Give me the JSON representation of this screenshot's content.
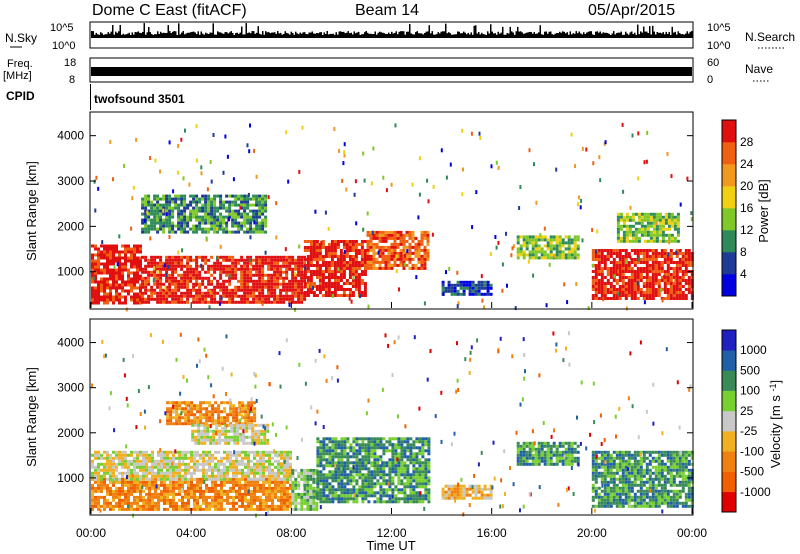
{
  "header": {
    "radar": "Dome C East (fitACF)",
    "beam": "Beam 14",
    "date": "05/Apr/2015"
  },
  "strips": {
    "nsky_label": "N.Sky",
    "nsearch_label": "N.Search",
    "noise_ticks": [
      "10^5",
      "10^0"
    ],
    "freq_label": "Freq.",
    "freq_unit": "[MHz]",
    "freq_ticks": [
      "18",
      "8"
    ],
    "nave_label": "Nave",
    "nave_ticks": [
      "60",
      "0"
    ],
    "cpid_label": "CPID",
    "cpid_value": "twofsound 3501"
  },
  "colors": {
    "power": [
      "#0000e0",
      "#1e3c96",
      "#2f8a5a",
      "#80c828",
      "#f0d010",
      "#f09820",
      "#f06010",
      "#e01010"
    ],
    "velocity": [
      "#e00000",
      "#f06000",
      "#f08010",
      "#f0b020",
      "#c8c8c8",
      "#78d030",
      "#3a8a58",
      "#2060a8",
      "#2020c0"
    ]
  },
  "chart_data": [
    {
      "type": "heatmap",
      "name": "power",
      "ylabel": "Slant Range [km]",
      "yticks": [
        "1000",
        "2000",
        "3000",
        "4000"
      ],
      "ylim": [
        200,
        4500
      ],
      "colorbar_label": "Power [dB]",
      "colorbar_ticks": [
        "4",
        "8",
        "12",
        "16",
        "20",
        "24",
        "28"
      ],
      "bands": [
        {
          "t0": 0.0,
          "t1": 2.0,
          "r0": 300,
          "r1": 1600,
          "level": 7
        },
        {
          "t0": 2.0,
          "t1": 8.5,
          "r0": 300,
          "r1": 1350,
          "level": 7
        },
        {
          "t0": 8.5,
          "t1": 11.0,
          "r0": 500,
          "r1": 1700,
          "level": 7
        },
        {
          "t0": 11.0,
          "t1": 13.5,
          "r0": 1100,
          "r1": 1900,
          "level": 6
        },
        {
          "t0": 2.0,
          "t1": 7.0,
          "r0": 1900,
          "r1": 2700,
          "level": 2
        },
        {
          "t0": 14.0,
          "t1": 16.0,
          "r0": 500,
          "r1": 800,
          "level": 1
        },
        {
          "t0": 17.0,
          "t1": 19.5,
          "r0": 1300,
          "r1": 1800,
          "level": 3
        },
        {
          "t0": 20.0,
          "t1": 24.0,
          "r0": 400,
          "r1": 1500,
          "level": 7
        },
        {
          "t0": 21.0,
          "t1": 23.5,
          "r0": 1700,
          "r1": 2300,
          "level": 3
        }
      ]
    },
    {
      "type": "heatmap",
      "name": "velocity",
      "ylabel": "Slant Range [km]",
      "yticks": [
        "1000",
        "2000",
        "3000",
        "4000"
      ],
      "ylim": [
        200,
        4500
      ],
      "colorbar_label": "Velocity [m s^-1]",
      "colorbar_ticks": [
        "-1000",
        "-500",
        "-100",
        "-25",
        "25",
        "100",
        "500",
        "1000"
      ],
      "xlabel": "Time UT",
      "xticks": [
        "00:00",
        "04:00",
        "08:00",
        "12:00",
        "16:00",
        "20:00",
        "00:00"
      ],
      "bands": [
        {
          "t0": 0.0,
          "t1": 8.0,
          "r0": 300,
          "r1": 1000,
          "level": 2
        },
        {
          "t0": 0.0,
          "t1": 8.0,
          "r0": 1000,
          "r1": 1600,
          "level": 4
        },
        {
          "t0": 8.0,
          "t1": 9.0,
          "r0": 300,
          "r1": 1200,
          "level": 5
        },
        {
          "t0": 9.0,
          "t1": 13.5,
          "r0": 500,
          "r1": 1900,
          "level": 6
        },
        {
          "t0": 3.0,
          "t1": 6.5,
          "r0": 2200,
          "r1": 2700,
          "level": 2
        },
        {
          "t0": 4.0,
          "t1": 7.0,
          "r0": 1800,
          "r1": 2200,
          "level": 4
        },
        {
          "t0": 14.0,
          "t1": 16.0,
          "r0": 550,
          "r1": 850,
          "level": 3
        },
        {
          "t0": 17.0,
          "t1": 19.5,
          "r0": 1300,
          "r1": 1800,
          "level": 6
        },
        {
          "t0": 20.0,
          "t1": 24.0,
          "r0": 400,
          "r1": 1600,
          "level": 6
        }
      ]
    }
  ]
}
